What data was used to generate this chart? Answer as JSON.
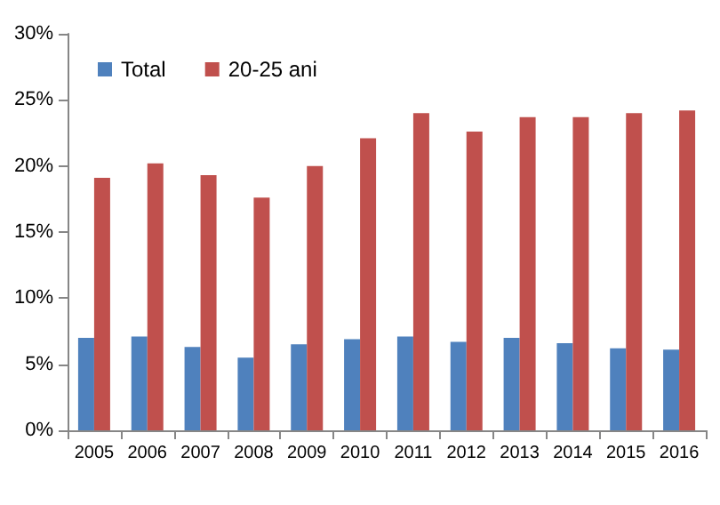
{
  "chart_data": {
    "type": "bar",
    "categories": [
      "2005",
      "2006",
      "2007",
      "2008",
      "2009",
      "2010",
      "2011",
      "2012",
      "2013",
      "2014",
      "2015",
      "2016"
    ],
    "series": [
      {
        "name": "Total",
        "color": "#4f81bd",
        "values": [
          7.0,
          7.1,
          6.3,
          5.5,
          6.5,
          6.9,
          7.1,
          6.7,
          7.0,
          6.6,
          6.2,
          6.1
        ]
      },
      {
        "name": "20-25 ani",
        "color": "#c0504d",
        "values": [
          19.1,
          20.2,
          19.3,
          17.6,
          20.0,
          22.1,
          24.0,
          22.6,
          23.7,
          23.7,
          24.0,
          24.2
        ]
      }
    ],
    "ylim": [
      0,
      30
    ],
    "yticks": [
      {
        "value": 0,
        "label": "0%"
      },
      {
        "value": 5,
        "label": "5%"
      },
      {
        "value": 10,
        "label": "10%"
      },
      {
        "value": 15,
        "label": "15%"
      },
      {
        "value": 20,
        "label": "20%"
      },
      {
        "value": 25,
        "label": "25%"
      },
      {
        "value": 30,
        "label": "30%"
      }
    ],
    "grid": false,
    "legend": "top left"
  }
}
